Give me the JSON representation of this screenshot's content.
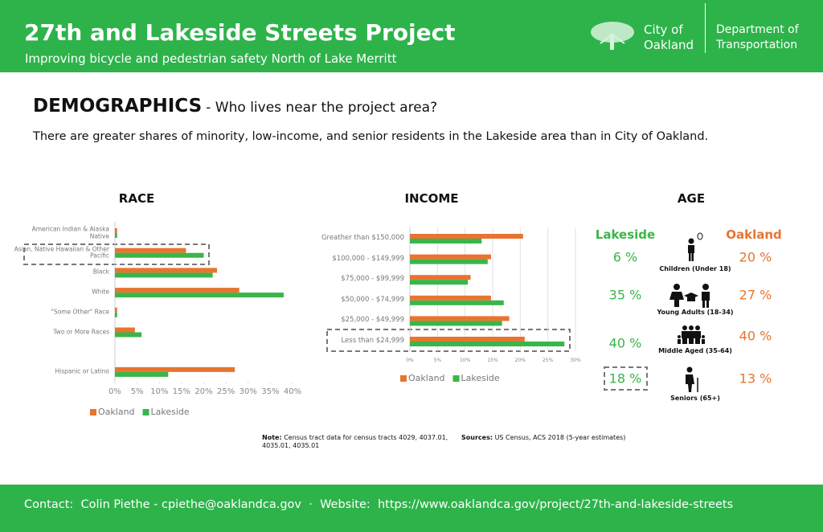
{
  "header": {
    "title": "27th and Lakeside Streets Project",
    "subtitle": "Improving bicycle and pedestrian safety North of Lake Merritt",
    "logo_city": [
      "City of",
      "Oakland"
    ],
    "logo_department": [
      "Department of",
      "Transportation"
    ]
  },
  "section": {
    "heading": "DEMOGRAPHICS",
    "tagline": "- Who lives near the project area?",
    "summary": "There are greater shares of minority, low-income, and senior residents in the Lakeside area than in City of Oakland."
  },
  "chart_data": [
    {
      "type": "bar",
      "orientation": "horizontal",
      "title": "RACE",
      "categories": [
        "American Indian & Alaska Native",
        "Asian, Native Hawaiian & Other Pacific",
        "Black",
        "White",
        "\"Some Other\" Race",
        "Two or More Races",
        null,
        "Hispanic or Latino"
      ],
      "series": [
        {
          "name": "Oakland",
          "color": "#e8742f",
          "values": [
            0.5,
            16,
            23,
            28,
            0.5,
            4.5,
            null,
            27
          ]
        },
        {
          "name": "Lakeside",
          "color": "#3ab54a",
          "values": [
            0.5,
            20,
            22,
            38,
            0.5,
            6,
            null,
            12
          ]
        }
      ],
      "xlim": [
        0,
        40
      ],
      "xticks": [
        {
          "value": 0,
          "label": "0%"
        },
        {
          "value": 5,
          "label": "5%"
        },
        {
          "value": 10,
          "label": "10%"
        },
        {
          "value": 15,
          "label": "15%"
        },
        {
          "value": 20,
          "label": "20%"
        },
        {
          "value": 25,
          "label": "25%"
        },
        {
          "value": 30,
          "label": "30%"
        },
        {
          "value": 35,
          "label": "35%"
        },
        {
          "value": 40,
          "label": "40%"
        }
      ],
      "grid": false,
      "legend": "bottom-left"
    },
    {
      "type": "bar",
      "orientation": "horizontal",
      "title": "INCOME",
      "categories": [
        "Greather than $150,000",
        "$100,000 - $149,999",
        "$75,000 - $99,999",
        "$50,000 - $74,999",
        "$25,000 - $49,999",
        "Less than $24,999"
      ],
      "series": [
        {
          "name": "Oakland",
          "color": "#e8742f",
          "values": [
            20.5,
            14.7,
            11,
            14.7,
            18,
            20.8
          ]
        },
        {
          "name": "Lakeside",
          "color": "#3ab54a",
          "values": [
            13,
            14.1,
            10.5,
            17,
            16.7,
            28
          ]
        }
      ],
      "xlim": [
        0,
        30
      ],
      "xticks": [
        {
          "value": 0,
          "label": "0%"
        },
        {
          "value": 5,
          "label": "5%"
        },
        {
          "value": 10,
          "label": "10%"
        },
        {
          "value": 15,
          "label": "15%"
        },
        {
          "value": 20,
          "label": "20%"
        },
        {
          "value": 25,
          "label": "25%"
        },
        {
          "value": 30,
          "label": "30%"
        }
      ],
      "grid": true,
      "legend": "bottom-left"
    }
  ],
  "age": {
    "title": "AGE",
    "column_left": "Lakeside",
    "column_right": "Oakland",
    "rows": [
      {
        "group": "Children (Under 18)",
        "lakeside": "6 %",
        "oakland": "20 %"
      },
      {
        "group": "Young Adults (18-34)",
        "lakeside": "35 %",
        "oakland": "27 %"
      },
      {
        "group": "Middle Aged (35-64)",
        "lakeside": "40 %",
        "oakland": "40 %"
      },
      {
        "group": "Seniors (65+)",
        "lakeside": "18 %",
        "oakland": "13 %"
      }
    ]
  },
  "notes": {
    "note_label": "Note:",
    "note": "Census tract data for census tracts 4029, 4037.01, 4035.01, 4035.01",
    "sources_label": "Sources:",
    "sources": "US Census, ACS 2018 (5-year estimates)"
  },
  "footer": {
    "contact_label": "Contact:",
    "contact": "Colin Piethe - cpiethe@oaklandca.gov",
    "website_label": "Website:",
    "website": "https://www.oaklandca.gov/project/27th-and-lakeside-streets"
  }
}
